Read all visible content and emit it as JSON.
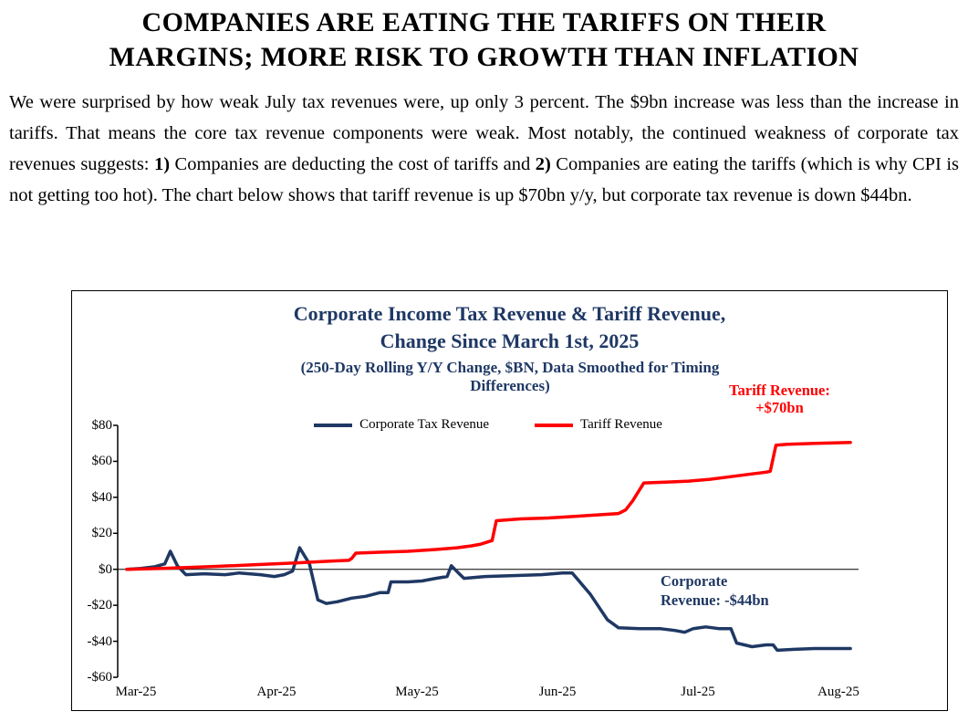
{
  "headline": {
    "line1": "COMPANIES ARE EATING THE TARIFFS ON THEIR",
    "line2": "MARGINS; MORE RISK TO GROWTH THAN INFLATION"
  },
  "paragraph_segments": [
    {
      "text": "We were surprised by how weak July tax revenues were, up only 3 percent. The $9bn increase was less than the increase in tariffs. That means the core tax revenue components were weak. Most notably, the continued weakness of corporate tax revenues suggests: ",
      "bold": false
    },
    {
      "text": "1)",
      "bold": true
    },
    {
      "text": " Companies are deducting the cost of tariffs and ",
      "bold": false
    },
    {
      "text": "2)",
      "bold": true
    },
    {
      "text": " Companies are eating the tariffs (which is why CPI is not getting too hot). The chart below shows that tariff revenue is up $70bn y/y, but corporate tax revenue is down $44bn.",
      "bold": false
    }
  ],
  "chart_data": {
    "type": "line",
    "title_line1": "Corporate Income Tax Revenue & Tariff Revenue,",
    "title_line2": "Change Since March 1st, 2025",
    "subtitle_line1": "(250-Day Rolling Y/Y Change, $BN, Data Smoothed for Timing",
    "subtitle_line2": "Differences)",
    "title_color": "#1F3864",
    "xlabel": "",
    "ylabel": "",
    "x_unit": "months since Mar-25 (0 = Mar-25, 5 = Aug-25)",
    "x_tick_labels": [
      "Mar-25",
      "Apr-25",
      "May-25",
      "Jun-25",
      "Jul-25",
      "Aug-25"
    ],
    "y_tick_labels": [
      "$80",
      "$60",
      "$40",
      "$20",
      "$0",
      "-$20",
      "-$40",
      "-$60"
    ],
    "y_tick_values": [
      80,
      60,
      40,
      20,
      0,
      -20,
      -40,
      -60
    ],
    "ylim": [
      -60,
      80
    ],
    "grid": false,
    "legend_position": "top-center",
    "series": [
      {
        "name": "Corporate Tax Revenue",
        "color": "#1F3864",
        "points": [
          [
            0,
            0
          ],
          [
            0.1,
            0.5
          ],
          [
            0.2,
            1.5
          ],
          [
            0.27,
            3
          ],
          [
            0.31,
            10
          ],
          [
            0.36,
            2
          ],
          [
            0.42,
            -3
          ],
          [
            0.55,
            -2.5
          ],
          [
            0.7,
            -3
          ],
          [
            0.8,
            -2
          ],
          [
            0.95,
            -3
          ],
          [
            1.05,
            -4
          ],
          [
            1.12,
            -3
          ],
          [
            1.18,
            -1
          ],
          [
            1.23,
            12
          ],
          [
            1.3,
            3
          ],
          [
            1.36,
            -17
          ],
          [
            1.42,
            -19
          ],
          [
            1.5,
            -18
          ],
          [
            1.6,
            -16
          ],
          [
            1.7,
            -15
          ],
          [
            1.8,
            -13
          ],
          [
            1.86,
            -13
          ],
          [
            1.88,
            -7
          ],
          [
            2.0,
            -7
          ],
          [
            2.1,
            -6.5
          ],
          [
            2.2,
            -5
          ],
          [
            2.28,
            -4
          ],
          [
            2.31,
            2
          ],
          [
            2.36,
            -2
          ],
          [
            2.4,
            -5
          ],
          [
            2.55,
            -4
          ],
          [
            2.75,
            -3.5
          ],
          [
            2.95,
            -3
          ],
          [
            3.1,
            -2
          ],
          [
            3.17,
            -2
          ],
          [
            3.3,
            -14
          ],
          [
            3.42,
            -28
          ],
          [
            3.5,
            -32.5
          ],
          [
            3.65,
            -33
          ],
          [
            3.8,
            -33
          ],
          [
            3.9,
            -34
          ],
          [
            3.97,
            -35
          ],
          [
            4.03,
            -33
          ],
          [
            4.12,
            -32
          ],
          [
            4.22,
            -33
          ],
          [
            4.3,
            -33
          ],
          [
            4.34,
            -41
          ],
          [
            4.45,
            -43
          ],
          [
            4.55,
            -42
          ],
          [
            4.6,
            -42
          ],
          [
            4.63,
            -45
          ],
          [
            4.75,
            -44.5
          ],
          [
            4.9,
            -44
          ],
          [
            5.15,
            -44
          ]
        ]
      },
      {
        "name": "Tariff Revenue",
        "color": "#FF0000",
        "points": [
          [
            0,
            0
          ],
          [
            0.25,
            0.5
          ],
          [
            0.6,
            1.5
          ],
          [
            0.9,
            2.5
          ],
          [
            1.2,
            3.5
          ],
          [
            1.45,
            4.5
          ],
          [
            1.58,
            5
          ],
          [
            1.6,
            6
          ],
          [
            1.63,
            9
          ],
          [
            1.8,
            9.5
          ],
          [
            2.0,
            10
          ],
          [
            2.2,
            11
          ],
          [
            2.35,
            12
          ],
          [
            2.45,
            13
          ],
          [
            2.52,
            14
          ],
          [
            2.58,
            15.5
          ],
          [
            2.6,
            16
          ],
          [
            2.63,
            27
          ],
          [
            2.8,
            28
          ],
          [
            3.0,
            28.5
          ],
          [
            3.2,
            29.5
          ],
          [
            3.4,
            30.5
          ],
          [
            3.5,
            31
          ],
          [
            3.55,
            33
          ],
          [
            3.6,
            38
          ],
          [
            3.68,
            48
          ],
          [
            3.85,
            48.5
          ],
          [
            4.0,
            49
          ],
          [
            4.15,
            50
          ],
          [
            4.3,
            51.5
          ],
          [
            4.45,
            53
          ],
          [
            4.55,
            54
          ],
          [
            4.58,
            54.5
          ],
          [
            4.62,
            69
          ],
          [
            4.7,
            69.5
          ],
          [
            4.9,
            70
          ],
          [
            5.15,
            70.5
          ]
        ]
      }
    ],
    "annotations": {
      "tariff": {
        "line1": "Tariff Revenue:",
        "line2": "+$70bn",
        "color": "#FF0000"
      },
      "corporate": {
        "line1": "Corporate",
        "line2": "Revenue: -$44bn",
        "color": "#1F3864"
      }
    }
  }
}
